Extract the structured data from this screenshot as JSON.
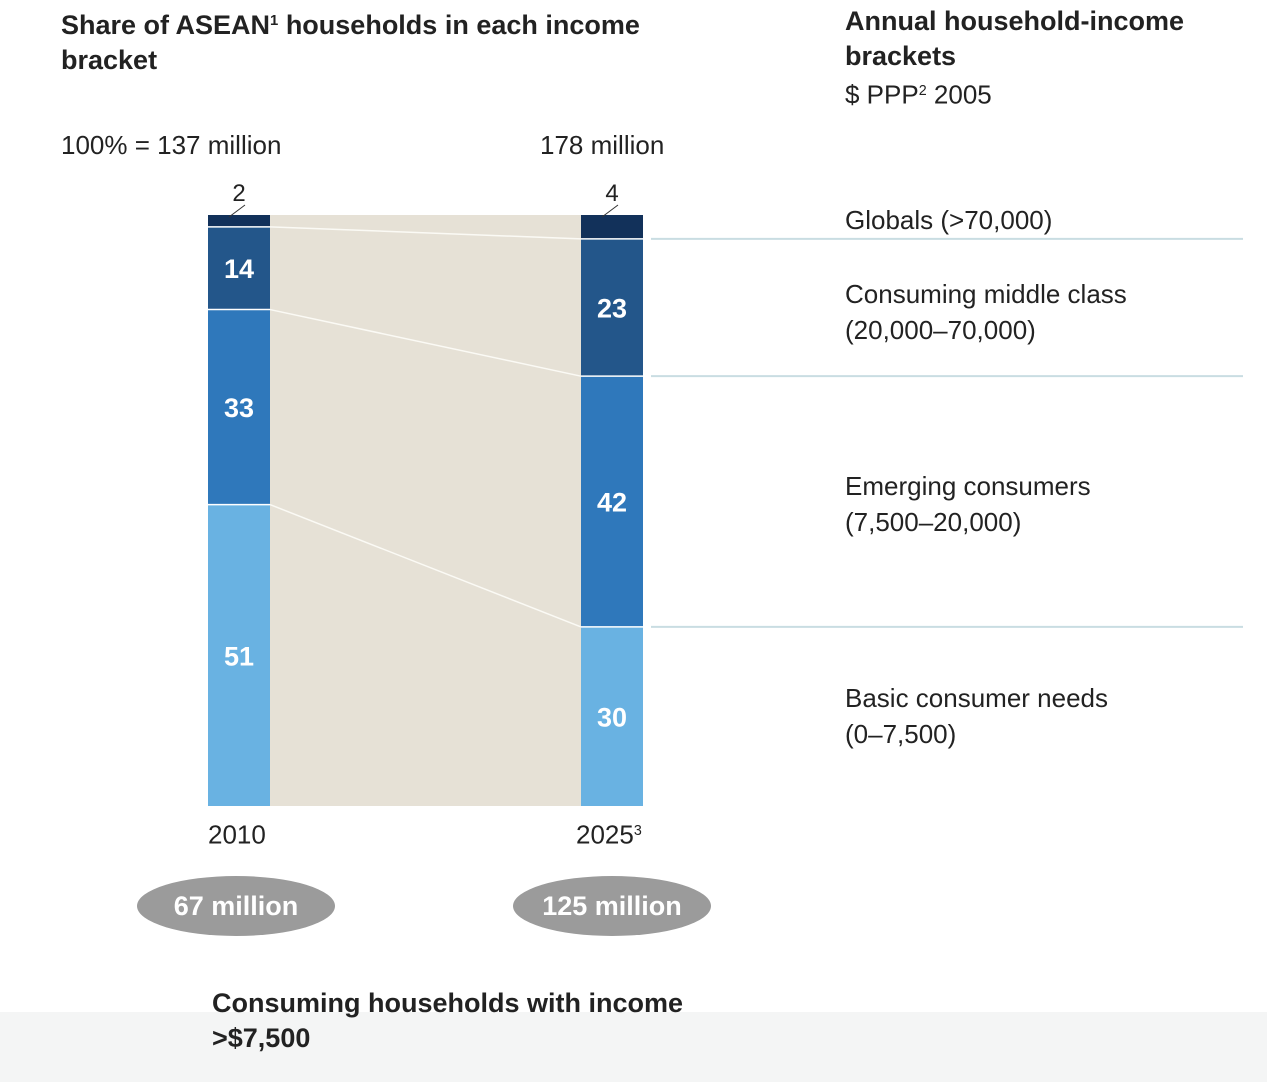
{
  "header": {
    "title_left_main": "Share of ASEAN",
    "title_left_sup": "1",
    "title_left_rest": " households in each income bracket",
    "title_right": "Annual household-income brackets",
    "subtitle_right_main": "$ PPP",
    "subtitle_right_sup": "2",
    "subtitle_right_rest": " 2005"
  },
  "totals": {
    "left": "100% = 137 million",
    "right": "178 million"
  },
  "brackets": [
    {
      "name": "Globals (>70,000)",
      "line2": ""
    },
    {
      "name": "Consuming middle class",
      "line2": "(20,000–70,000)"
    },
    {
      "name": "Emerging consumers",
      "line2": "(7,500–20,000)"
    },
    {
      "name": "Basic consumer needs",
      "line2": "(0–7,500)"
    }
  ],
  "consuming": {
    "y2010": "67 million",
    "y2025": "125 million",
    "note": "Consuming households with income >$7,500"
  },
  "chart_data": {
    "type": "stacked-bar",
    "categories": [
      "2010",
      "2025"
    ],
    "category_labels": [
      {
        "main": "2010",
        "sup": ""
      },
      {
        "main": "2025",
        "sup": "3"
      }
    ],
    "series": [
      {
        "name": "Basic consumer needs",
        "values": [
          51,
          30
        ],
        "color": "#69b2e2"
      },
      {
        "name": "Emerging consumers",
        "values": [
          33,
          42
        ],
        "color": "#2f78bb"
      },
      {
        "name": "Consuming middle class",
        "values": [
          14,
          23
        ],
        "color": "#23568a"
      },
      {
        "name": "Globals",
        "values": [
          2,
          4
        ],
        "color": "#12315a"
      }
    ],
    "connector_fill": "#e6e1d6",
    "ylim": [
      0,
      100
    ]
  }
}
